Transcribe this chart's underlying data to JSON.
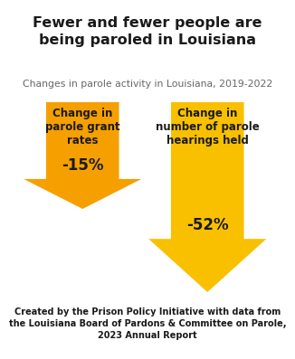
{
  "title": "Fewer and fewer people are\nbeing paroled in Louisiana",
  "subtitle": "Changes in parole activity in Louisiana, 2019-2022",
  "arrow1_label": "Change in\nparole grant\nrates",
  "arrow1_value": "-15%",
  "arrow1_color": "#F5A000",
  "arrow2_label": "Change in\nnumber of parole\nhearings held",
  "arrow2_value": "-52%",
  "arrow2_color": "#F9C000",
  "footer": "Created by the Prison Policy Initiative with data from\nthe Louisiana Board of Pardons & Committee on Parole,\n2023 Annual Report",
  "background_color": "#FFFFFF",
  "text_color": "#1a1a1a",
  "title_fontsize": 11.5,
  "subtitle_fontsize": 7.8,
  "label_fontsize": 8.5,
  "value_fontsize": 12,
  "footer_fontsize": 7.0
}
